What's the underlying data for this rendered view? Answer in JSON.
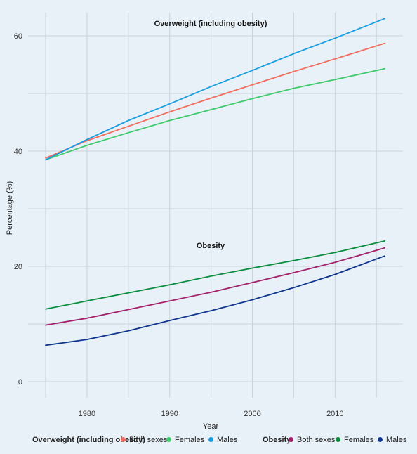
{
  "chart_data": {
    "type": "line",
    "xlabel": "Year",
    "ylabel": "Percentage (%)",
    "xlim": [
      1975,
      2016
    ],
    "ylim": [
      0,
      62
    ],
    "x_ticks": [
      1980,
      1990,
      2000,
      2010
    ],
    "y_ticks": [
      0,
      20,
      40,
      60
    ],
    "grid": true,
    "legend_position": "bottom",
    "panel_labels": {
      "overweight": "Overweight (including obesity)",
      "obesity": "Obesity"
    },
    "groups": [
      {
        "name": "Overweight (including obesity)",
        "series": [
          {
            "name": "Both sexes",
            "color": "#f26b5b",
            "x": [
              1975,
              1980,
              1985,
              1990,
              1995,
              2000,
              2005,
              2010,
              2016
            ],
            "values": [
              38.8,
              41.8,
              44.3,
              46.8,
              49.2,
              51.5,
              53.8,
              56.0,
              58.7
            ]
          },
          {
            "name": "Females",
            "color": "#3ec96b",
            "x": [
              1975,
              1980,
              1985,
              1990,
              1995,
              2000,
              2005,
              2010,
              2016
            ],
            "values": [
              38.5,
              41.0,
              43.2,
              45.3,
              47.2,
              49.1,
              50.9,
              52.4,
              54.3
            ]
          },
          {
            "name": "Males",
            "color": "#1a9ee0",
            "x": [
              1975,
              1980,
              1985,
              1990,
              1995,
              2000,
              2005,
              2010,
              2016
            ],
            "values": [
              38.5,
              42.0,
              45.3,
              48.2,
              51.2,
              54.0,
              56.9,
              59.6,
              63.0
            ]
          }
        ]
      },
      {
        "name": "Obesity",
        "series": [
          {
            "name": "Both sexes",
            "color": "#a3226b",
            "x": [
              1975,
              1980,
              1985,
              1990,
              1995,
              2000,
              2005,
              2010,
              2016
            ],
            "values": [
              9.8,
              11.0,
              12.5,
              14.0,
              15.5,
              17.2,
              18.9,
              20.7,
              23.2
            ]
          },
          {
            "name": "Females",
            "color": "#0a8d3d",
            "x": [
              1975,
              1980,
              1985,
              1990,
              1995,
              2000,
              2005,
              2010,
              2016
            ],
            "values": [
              12.6,
              14.0,
              15.4,
              16.8,
              18.3,
              19.7,
              21.0,
              22.4,
              24.4
            ]
          },
          {
            "name": "Males",
            "color": "#10358d",
            "x": [
              1975,
              1980,
              1985,
              1990,
              1995,
              2000,
              2005,
              2010,
              2016
            ],
            "values": [
              6.3,
              7.3,
              8.8,
              10.6,
              12.3,
              14.2,
              16.3,
              18.6,
              21.8
            ]
          }
        ]
      }
    ]
  }
}
